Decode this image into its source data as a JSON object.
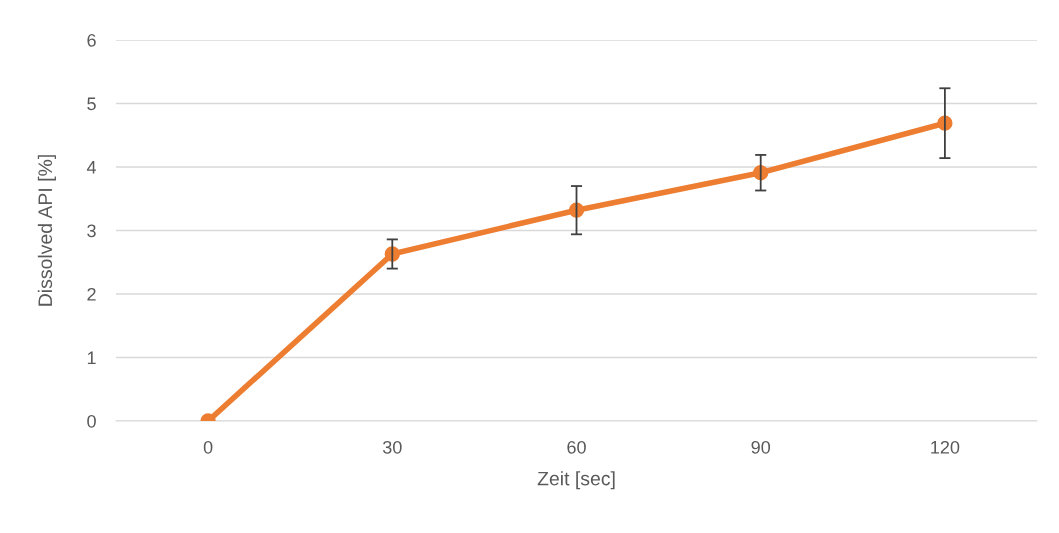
{
  "chart_data": {
    "type": "line",
    "xlabel": "Zeit [sec]",
    "ylabel": "Dissolved API [%]",
    "categories": [
      "0",
      "30",
      "60",
      "90",
      "120"
    ],
    "series": [
      {
        "color": "#ed7d31",
        "values": [
          0,
          2.63,
          3.32,
          3.91,
          4.69
        ],
        "errors": [
          null,
          0.23,
          0.38,
          0.28,
          0.55
        ]
      }
    ],
    "ylim": [
      0,
      6
    ],
    "yticks": [
      0,
      1,
      2,
      3,
      4,
      5,
      6
    ],
    "grid": "y",
    "marker": "circle",
    "line_style": "solid"
  }
}
